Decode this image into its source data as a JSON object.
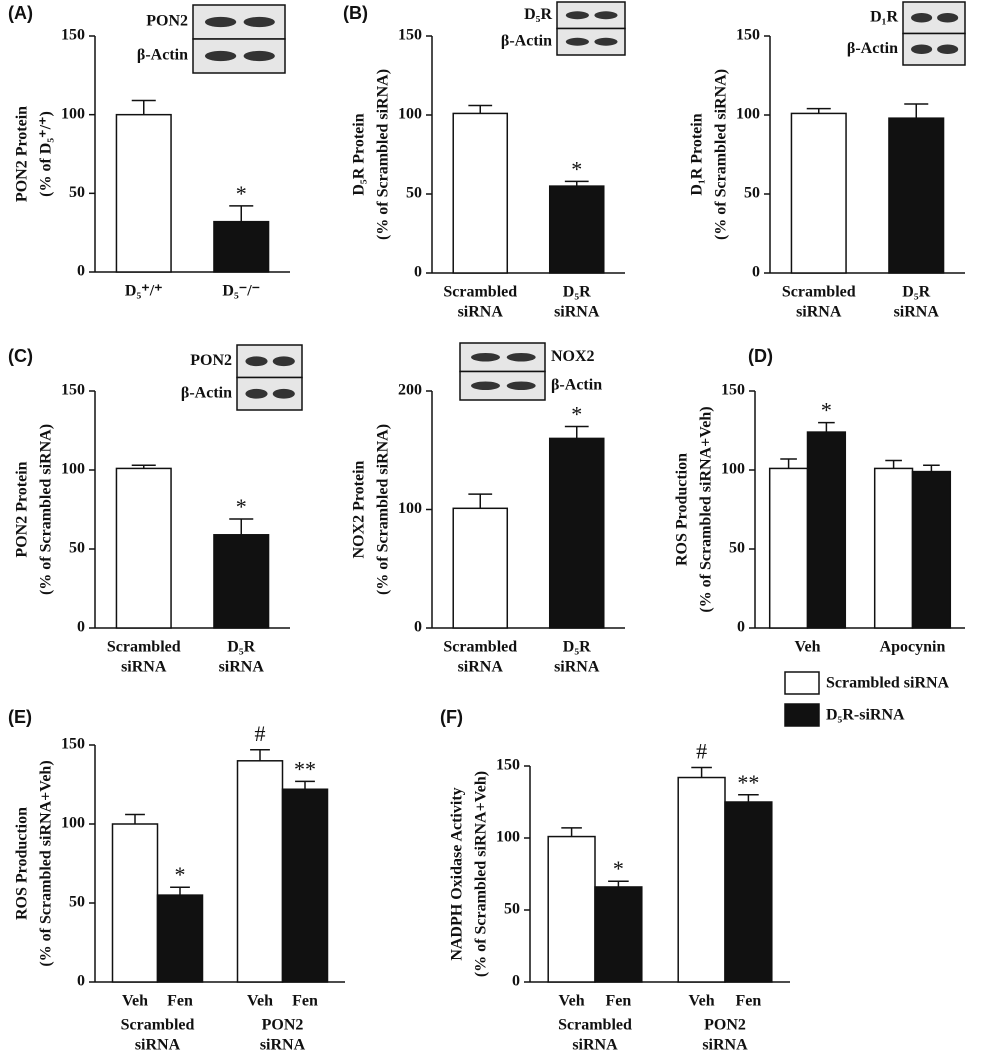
{
  "chart_data": [
    {
      "type": "bar",
      "panel": "(A)",
      "ylabel": [
        "PON2 Protein",
        "(% of D₅⁺/⁺)"
      ],
      "blot": [
        "PON2",
        "β-Actin"
      ],
      "categories": [
        [
          "D₅⁺/⁺"
        ],
        [
          "D₅⁻/⁻"
        ]
      ],
      "series": [
        {
          "colors": [
            "#ffffff",
            "#111111"
          ],
          "values": [
            100,
            32
          ],
          "errors": [
            9,
            10
          ],
          "annotations": [
            null,
            "*"
          ]
        }
      ],
      "ylim": [
        0,
        150
      ],
      "yticks": [
        0,
        50,
        100,
        150
      ]
    },
    {
      "type": "bar",
      "panel": "(B)",
      "ylabel": [
        "D₅R Protein",
        "(% of Scrambled siRNA)"
      ],
      "blot": [
        "D₅R",
        "β-Actin"
      ],
      "categories": [
        [
          "Scrambled",
          "siRNA"
        ],
        [
          "D₅R",
          "siRNA"
        ]
      ],
      "series": [
        {
          "colors": [
            "#ffffff",
            "#111111"
          ],
          "values": [
            101,
            55
          ],
          "errors": [
            5,
            3
          ],
          "annotations": [
            null,
            "*"
          ]
        }
      ],
      "ylim": [
        0,
        150
      ],
      "yticks": [
        0,
        50,
        100,
        150
      ]
    },
    {
      "type": "bar",
      "ylabel": [
        "D₁R Protein",
        "(% of Scrambled siRNA)"
      ],
      "blot": [
        "D₁R",
        "β-Actin"
      ],
      "categories": [
        [
          "Scrambled",
          "siRNA"
        ],
        [
          "D₅R",
          "siRNA"
        ]
      ],
      "series": [
        {
          "colors": [
            "#ffffff",
            "#111111"
          ],
          "values": [
            101,
            98
          ],
          "errors": [
            3,
            9
          ]
        }
      ],
      "ylim": [
        0,
        150
      ],
      "yticks": [
        0,
        50,
        100,
        150
      ]
    },
    {
      "type": "bar",
      "panel": "(C)",
      "ylabel": [
        "PON2 Protein",
        "(% of Scrambled siRNA)"
      ],
      "blot": [
        "PON2",
        "β-Actin"
      ],
      "categories": [
        [
          "Scrambled",
          "siRNA"
        ],
        [
          "D₅R",
          "siRNA"
        ]
      ],
      "series": [
        {
          "colors": [
            "#ffffff",
            "#111111"
          ],
          "values": [
            101,
            59
          ],
          "errors": [
            2,
            10
          ],
          "annotations": [
            null,
            "*"
          ]
        }
      ],
      "ylim": [
        0,
        150
      ],
      "yticks": [
        0,
        50,
        100,
        150
      ]
    },
    {
      "type": "bar",
      "ylabel": [
        "NOX2 Protein",
        "(% of Scrambled siRNA)"
      ],
      "blot": [
        "NOX2",
        "β-Actin"
      ],
      "categories": [
        [
          "Scrambled",
          "siRNA"
        ],
        [
          "D₅R",
          "siRNA"
        ]
      ],
      "series": [
        {
          "colors": [
            "#ffffff",
            "#111111"
          ],
          "values": [
            101,
            160
          ],
          "errors": [
            12,
            10
          ],
          "annotations": [
            null,
            "*"
          ]
        }
      ],
      "ylim": [
        0,
        200
      ],
      "yticks": [
        0,
        100,
        200
      ]
    },
    {
      "type": "bar",
      "panel": "(D)",
      "ylabel": [
        "ROS Production",
        "(% of Scrambled siRNA+Veh)"
      ],
      "categories": [
        [
          "Veh"
        ],
        [
          "Apocynin"
        ]
      ],
      "series": [
        {
          "name": "Scrambled siRNA",
          "color": "#ffffff",
          "values": [
            101,
            101
          ],
          "errors": [
            6,
            5
          ]
        },
        {
          "name": "D₅R-siRNA",
          "color": "#111111",
          "values": [
            124,
            99
          ],
          "errors": [
            6,
            4
          ],
          "annotations": [
            "*",
            null
          ]
        }
      ],
      "ylim": [
        0,
        150
      ],
      "yticks": [
        0,
        50,
        100,
        150
      ],
      "legend": true
    },
    {
      "type": "bar",
      "panel": "(E)",
      "ylabel": [
        "ROS Production",
        "(% of Scrambled siRNA+Veh)"
      ],
      "categories": [
        [
          "Veh"
        ],
        [
          "Fen"
        ],
        [
          "Veh"
        ],
        [
          "Fen"
        ]
      ],
      "groups": [
        [
          "Scrambled",
          "siRNA"
        ],
        [
          "PON2",
          "siRNA"
        ]
      ],
      "series": [
        {
          "colors": [
            "#ffffff",
            "#111111",
            "#ffffff",
            "#111111"
          ],
          "values": [
            100,
            55,
            140,
            122
          ],
          "errors": [
            6,
            5,
            7,
            5
          ],
          "annotations": [
            null,
            "*",
            "#",
            "**"
          ]
        }
      ],
      "ylim": [
        0,
        150
      ],
      "yticks": [
        0,
        50,
        100,
        150
      ]
    },
    {
      "type": "bar",
      "panel": "(F)",
      "ylabel": [
        "NADPH Oxidase Activity",
        "(% of  Scrambled siRNA+Veh)"
      ],
      "categories": [
        [
          "Veh"
        ],
        [
          "Fen"
        ],
        [
          "Veh"
        ],
        [
          "Fen"
        ]
      ],
      "groups": [
        [
          "Scrambled",
          "siRNA"
        ],
        [
          "PON2",
          "siRNA"
        ]
      ],
      "series": [
        {
          "colors": [
            "#ffffff",
            "#111111",
            "#ffffff",
            "#111111"
          ],
          "values": [
            101,
            66,
            142,
            125
          ],
          "errors": [
            6,
            4,
            7,
            5
          ],
          "annotations": [
            null,
            "*",
            "#",
            "**"
          ]
        }
      ],
      "ylim": [
        0,
        150
      ],
      "yticks": [
        0,
        50,
        100,
        150
      ]
    }
  ]
}
